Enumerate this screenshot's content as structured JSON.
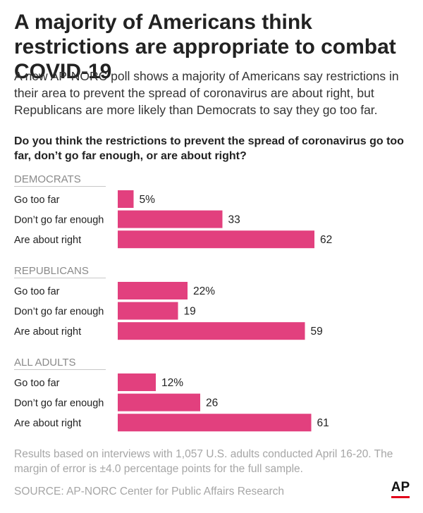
{
  "title": "A majority of Americans think restrictions are appropriate to combat COVID-19",
  "subtitle": "A new AP-NORC poll shows a majority of Americans say restrictions in their area to prevent the spread of coronavirus are about right, but Republicans are more likely than Democrats to say they go too far.",
  "question": "Do you think the restrictions to prevent the spread of coronavirus go too far, don’t go far enough, or are about right?",
  "chart_data": {
    "type": "bar",
    "orientation": "horizontal",
    "bar_color": "#e2407e",
    "xlim": [
      0,
      62
    ],
    "groups": [
      {
        "name": "DEMOCRATS",
        "categories": [
          "Go too far",
          "Don’t go far enough",
          "Are about right"
        ],
        "values": [
          5,
          33,
          62
        ],
        "value_labels": [
          "5%",
          "33",
          "62"
        ]
      },
      {
        "name": "REPUBLICANS",
        "categories": [
          "Go too far",
          "Don’t go far enough",
          "Are about right"
        ],
        "values": [
          22,
          19,
          59
        ],
        "value_labels": [
          "22%",
          "19",
          "59"
        ]
      },
      {
        "name": "ALL ADULTS",
        "categories": [
          "Go too far",
          "Don’t go far enough",
          "Are about right"
        ],
        "values": [
          12,
          26,
          61
        ],
        "value_labels": [
          "12%",
          "26",
          "61"
        ]
      }
    ]
  },
  "note": "Results based on interviews with 1,057 U.S. adults conducted April 16-20. The margin of error is ±4.0 percentage points for the full sample.",
  "source": "SOURCE: AP-NORC Center for Public Affairs Research",
  "logo_text": "AP"
}
